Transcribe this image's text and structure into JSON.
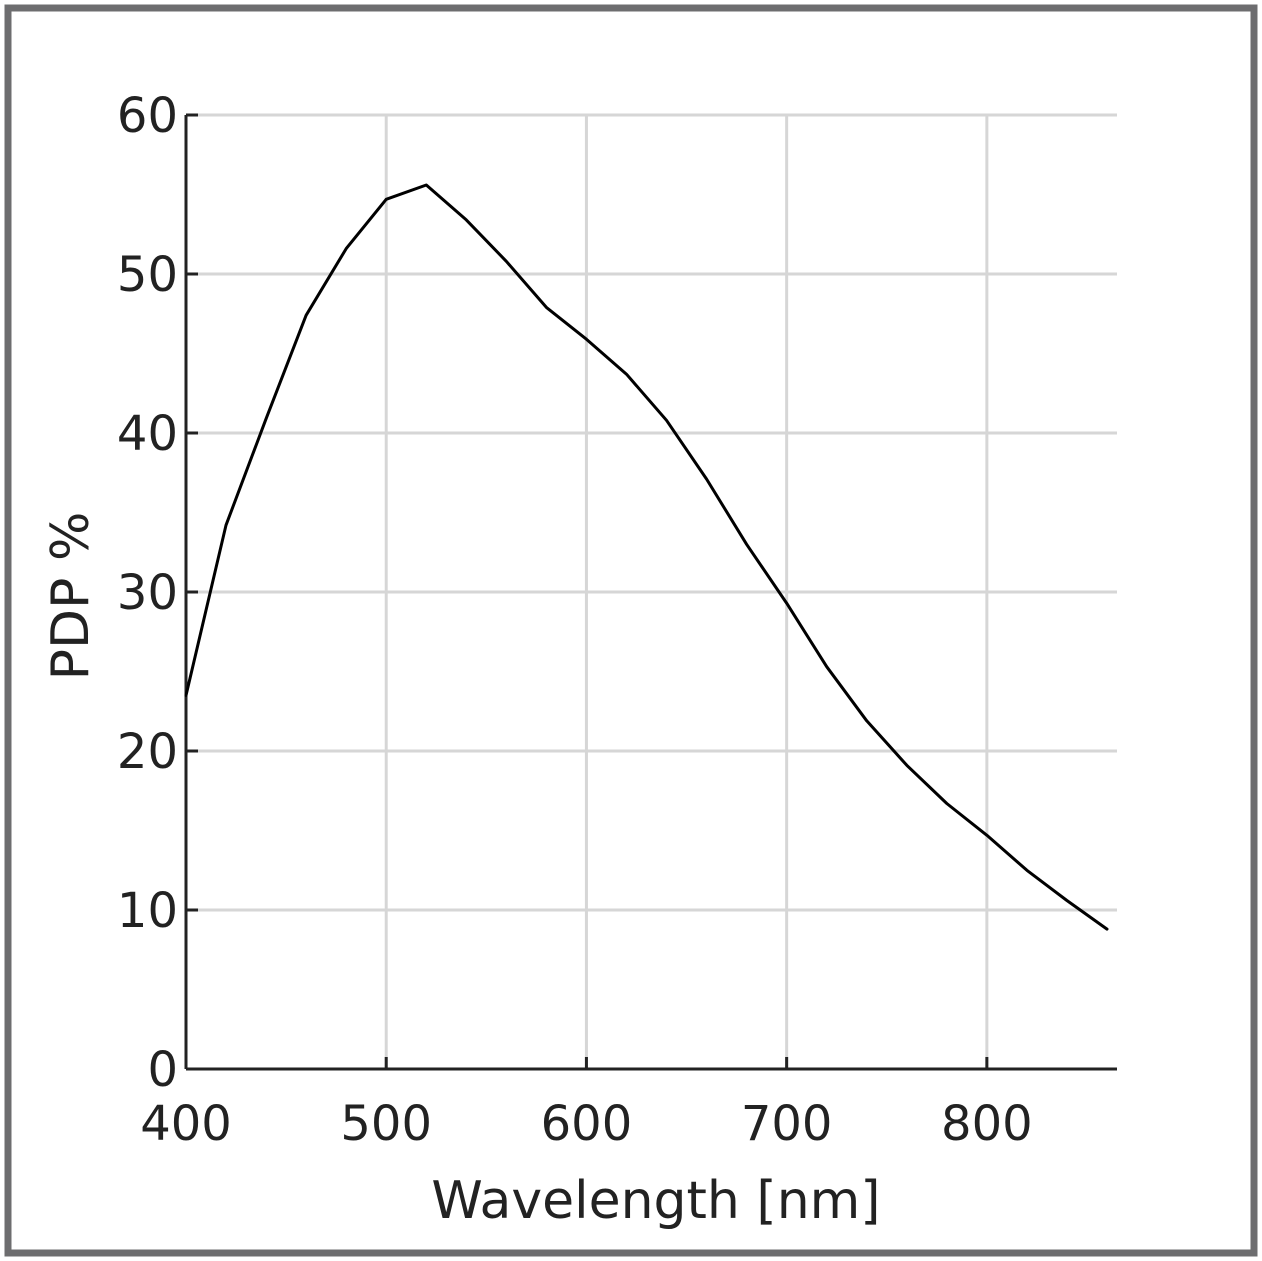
{
  "chart_data": {
    "type": "line",
    "title": "",
    "xlabel": "Wavelength [nm]",
    "ylabel": "PDP %",
    "xlim": [
      400,
      865
    ],
    "ylim": [
      0,
      60
    ],
    "xticks": [
      400,
      500,
      600,
      700,
      800
    ],
    "yticks": [
      0,
      10,
      20,
      30,
      40,
      50,
      60
    ],
    "grid": true,
    "legend": "none",
    "series": [
      {
        "color": "#000000",
        "x": [
          400,
          420,
          440,
          460,
          480,
          500,
          520,
          540,
          560,
          580,
          600,
          620,
          640,
          660,
          680,
          700,
          720,
          740,
          760,
          780,
          800,
          820,
          840,
          860
        ],
        "y": [
          23.5,
          34.2,
          40.9,
          47.4,
          51.6,
          54.7,
          55.6,
          53.4,
          50.8,
          47.9,
          45.9,
          43.7,
          40.8,
          37.1,
          33.0,
          29.3,
          25.3,
          21.9,
          19.1,
          16.7,
          14.7,
          12.5,
          10.6,
          8.8
        ]
      }
    ]
  }
}
